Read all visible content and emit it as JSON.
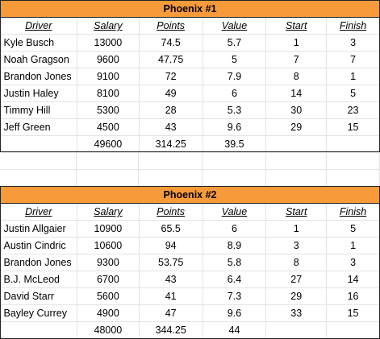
{
  "columns": [
    "Driver",
    "Salary",
    "Points",
    "Value",
    "Start",
    "Finish"
  ],
  "tables": [
    {
      "title": "Phoenix #1",
      "rows": [
        [
          "Kyle Busch",
          "13000",
          "74.5",
          "5.7",
          "1",
          "3"
        ],
        [
          "Noah Gragson",
          "9600",
          "47.75",
          "5",
          "7",
          "7"
        ],
        [
          "Brandon Jones",
          "9100",
          "72",
          "7.9",
          "8",
          "1"
        ],
        [
          "Justin Haley",
          "8100",
          "49",
          "6",
          "14",
          "5"
        ],
        [
          "Timmy Hill",
          "5300",
          "28",
          "5.3",
          "30",
          "23"
        ],
        [
          "Jeff Green",
          "4500",
          "43",
          "9.6",
          "29",
          "15"
        ]
      ],
      "totals": [
        "49600",
        "314.25",
        "39.5"
      ]
    },
    {
      "title": "Phoenix #2",
      "rows": [
        [
          "Justin Allgaier",
          "10900",
          "65.5",
          "6",
          "1",
          "5"
        ],
        [
          "Austin Cindric",
          "10600",
          "94",
          "8.9",
          "3",
          "1"
        ],
        [
          "Brandon Jones",
          "9300",
          "53.75",
          "5.8",
          "8",
          "3"
        ],
        [
          "B.J. McLeod",
          "6700",
          "43",
          "6.4",
          "27",
          "14"
        ],
        [
          "David Starr",
          "5600",
          "41",
          "7.3",
          "29",
          "16"
        ],
        [
          "Bayley Currey",
          "4900",
          "47",
          "9.6",
          "33",
          "15"
        ]
      ],
      "totals": [
        "48000",
        "344.25",
        "44"
      ]
    }
  ]
}
